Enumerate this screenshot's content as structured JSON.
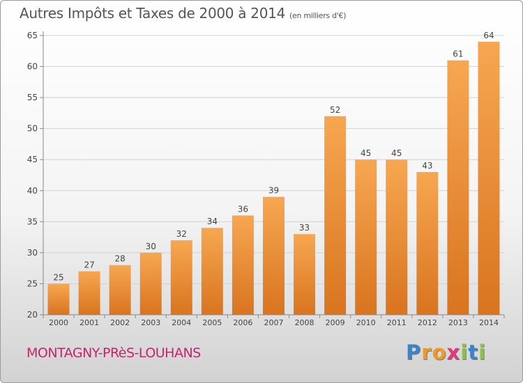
{
  "title": "Autres Impôts et Taxes de 2000 à 2014",
  "unit": "(en milliers d'€)",
  "commune": "MONTAGNY-PRèS-LOUHANS",
  "logo": {
    "letters": [
      "P",
      "r",
      "o",
      "x",
      "i",
      "t",
      "i"
    ],
    "colors": [
      "#3a84c9",
      "#f29a1e",
      "#f29a1e",
      "#e23a7a",
      "#8bc53f",
      "#3a84c9",
      "#8bc53f"
    ]
  },
  "colors": {
    "bar_light": "#f7a751",
    "bar_dark": "#d9741f",
    "grid": "#d2d2d2",
    "text": "#444444"
  },
  "chart_data": {
    "type": "bar",
    "categories": [
      "2000",
      "2001",
      "2002",
      "2003",
      "2004",
      "2005",
      "2006",
      "2007",
      "2008",
      "2009",
      "2010",
      "2011",
      "2012",
      "2013",
      "2014"
    ],
    "values": [
      25,
      27,
      28,
      30,
      32,
      34,
      36,
      39,
      33,
      52,
      45,
      45,
      43,
      61,
      64
    ],
    "yticks": [
      20,
      25,
      30,
      35,
      40,
      45,
      50,
      55,
      60,
      65
    ],
    "ylim": [
      20,
      65
    ],
    "grid": true
  }
}
